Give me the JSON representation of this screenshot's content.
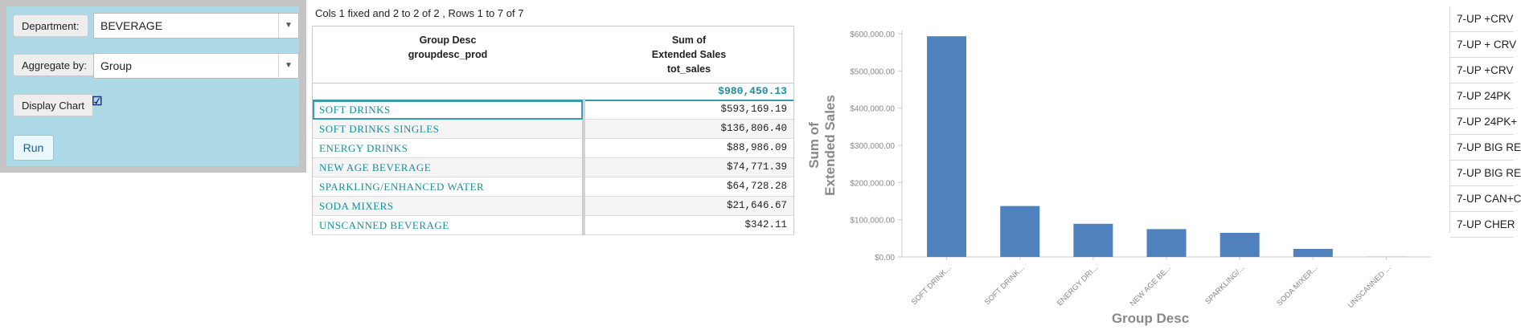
{
  "controls": {
    "department_label": "Department:",
    "department_value": "BEVERAGE",
    "aggregate_label": "Aggregate by:",
    "aggregate_value": "Group",
    "display_chart_label": "Display Chart",
    "display_chart_checked": true,
    "run_label": "Run",
    "dropdown_arrow": "▼"
  },
  "table": {
    "info": "Cols 1 fixed and 2 to 2 of 2 , Rows 1 to 7 of 7",
    "headers": [
      [
        "Group Desc",
        "groupdesc_prod"
      ],
      [
        "Sum of",
        "Extended Sales",
        "tot_sales"
      ]
    ],
    "total": "$980,450.13",
    "rows": [
      {
        "name": "SOFT DRINKS",
        "value": "$593,169.19"
      },
      {
        "name": "SOFT DRINKS SINGLES",
        "value": "$136,806.40"
      },
      {
        "name": "ENERGY DRINKS",
        "value": "$88,986.09"
      },
      {
        "name": "NEW AGE BEVERAGE",
        "value": "$74,771.39"
      },
      {
        "name": "SPARKLING/ENHANCED WATER",
        "value": "$64,728.28"
      },
      {
        "name": "SODA MIXERS",
        "value": "$21,646.67"
      },
      {
        "name": "UNSCANNED BEVERAGE",
        "value": "$342.11"
      }
    ]
  },
  "chart_data": {
    "type": "bar",
    "categories": [
      "SOFT DRINK...",
      "SOFT DRINK...",
      "ENERGY DRI...",
      "NEW AGE BE...",
      "SPARKLING/...",
      "SODA MIXER...",
      "UNSCANNED ..."
    ],
    "values": [
      593169.19,
      136806.4,
      88986.09,
      74771.39,
      64728.28,
      21646.67,
      342.11
    ],
    "xlabel": "Group Desc",
    "ylabel_lines": [
      "Sum of",
      "Extended Sales"
    ],
    "ylim": [
      0,
      600000
    ],
    "yticks": [
      0,
      100000,
      200000,
      300000,
      400000,
      500000,
      600000
    ],
    "ytick_labels": [
      "$0.00",
      "$100,000.00",
      "$200,000.00",
      "$300,000.00",
      "$400,000.00",
      "$500,000.00",
      "$600,000.00"
    ],
    "bar_color": "#4f81bd",
    "grid": false
  },
  "right_list": [
    "7-UP +CRV",
    "7-UP + CRV",
    "7-UP +CRV",
    "7-UP 24PK",
    "7-UP 24PK+",
    "7-UP BIG RE",
    "7-UP BIG RE",
    "7-UP CAN+C",
    "7-UP CHER"
  ]
}
